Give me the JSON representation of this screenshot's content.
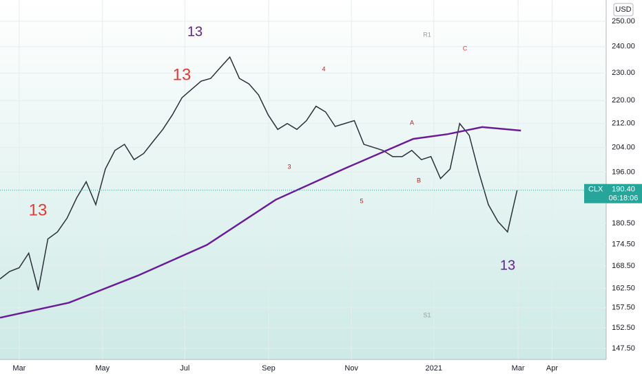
{
  "chart_data": {
    "type": "line",
    "currency": "USD",
    "log_scale": true,
    "xlim": [
      0,
      126.6
    ],
    "ylim": [
      144.91,
      258.74
    ],
    "xticks": [
      {
        "value": 4,
        "label": "Mar"
      },
      {
        "value": 21.4,
        "label": "May"
      },
      {
        "value": 38.6,
        "label": "Jul"
      },
      {
        "value": 56.1,
        "label": "Sep"
      },
      {
        "value": 73.4,
        "label": "Nov"
      },
      {
        "value": 90.6,
        "label": "2021"
      },
      {
        "value": 108.2,
        "label": "Mar"
      },
      {
        "value": 115.3,
        "label": "Apr"
      }
    ],
    "yticks": [
      {
        "value": 250,
        "label": "250.00"
      },
      {
        "value": 240,
        "label": "240.00"
      },
      {
        "value": 230,
        "label": "230.00"
      },
      {
        "value": 220,
        "label": "220.00"
      },
      {
        "value": 212,
        "label": "212.00"
      },
      {
        "value": 204,
        "label": "204.00"
      },
      {
        "value": 196,
        "label": "196.00"
      },
      {
        "value": 180.5,
        "label": "180.50"
      },
      {
        "value": 174.5,
        "label": "174.50"
      },
      {
        "value": 168.5,
        "label": "168.50"
      },
      {
        "value": 162.5,
        "label": "162.50"
      },
      {
        "value": 157.5,
        "label": "157.50"
      },
      {
        "value": 152.5,
        "label": "152.50"
      },
      {
        "value": 147.5,
        "label": "147.50"
      }
    ],
    "grid": true,
    "series": [
      {
        "color": "#2a2e39",
        "x": [
          0,
          2,
          4,
          6,
          8,
          10,
          12,
          14,
          16,
          18,
          20,
          22,
          24,
          26,
          28,
          30,
          32,
          34,
          36,
          38,
          40,
          42,
          44,
          46,
          48,
          50,
          52,
          54,
          56,
          58,
          60,
          62,
          64,
          66,
          68,
          70,
          72,
          74,
          76,
          78,
          80,
          82,
          84,
          86,
          88,
          90,
          92,
          94,
          96,
          98,
          100,
          102,
          104,
          106,
          108
        ],
        "values": [
          165,
          167,
          168,
          172,
          162,
          176,
          178,
          182,
          188,
          193,
          186,
          197,
          203,
          205,
          200,
          202,
          206,
          210,
          215,
          221,
          224,
          227,
          228,
          232,
          236,
          228,
          226,
          222,
          215,
          210,
          212,
          210,
          213,
          218,
          216,
          211,
          212,
          213,
          205,
          204,
          203,
          201,
          201,
          203,
          200,
          201,
          194,
          197,
          212,
          208,
          196,
          186,
          181,
          178,
          190.4
        ]
      },
      {
        "color": "#6a1b9a",
        "x": [
          0,
          14.4,
          28.8,
          43.2,
          57.6,
          71.9,
          86.3,
          93.5,
          100.7,
          108.8
        ],
        "values": [
          155,
          158.8,
          165.9,
          174.3,
          187.5,
          197.1,
          206.8,
          208.4,
          210.8,
          209.6
        ]
      }
    ],
    "last_price": {
      "symbol": "CLX",
      "value": 190.4,
      "label": "190.40",
      "countdown": "06:18:06"
    },
    "annotations": [
      "13",
      "13",
      "13",
      "13",
      "A",
      "B",
      "C",
      "R1",
      "S1",
      "3",
      "4",
      "5"
    ]
  }
}
